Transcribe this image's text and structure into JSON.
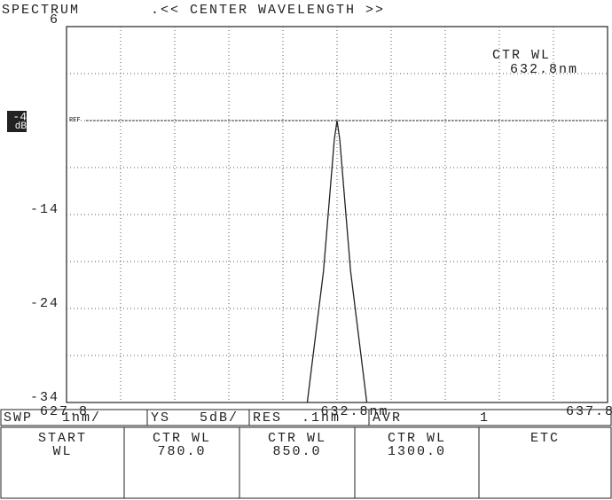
{
  "chart_data": {
    "type": "line",
    "title": "SPECTRUM",
    "subtitle": ".<< CENTER WAVELENGTH >>",
    "annotation": {
      "label": "CTR WL",
      "value": "632.8nm"
    },
    "ref_label": "REF",
    "ref_unit": "dB",
    "ref_level": -4,
    "x": [
      632.25,
      632.55,
      632.75,
      632.8,
      632.85,
      633.05,
      633.35
    ],
    "series": [
      {
        "name": "spectrum",
        "color": "#222",
        "values": [
          -34,
          -20,
          -6,
          -4,
          -6,
          -20,
          -34
        ]
      }
    ],
    "xlim": [
      627.8,
      637.8
    ],
    "xticks": [
      627.8,
      {
        "value": 632.8,
        "label": "632.8nm"
      },
      637.8
    ],
    "xgrid": [
      628.8,
      629.8,
      630.8,
      631.8,
      632.8,
      633.8,
      634.8,
      635.8,
      636.8
    ],
    "ylim": [
      -34,
      6
    ],
    "yticks": [
      6,
      -4,
      -14,
      -24,
      -34
    ],
    "ygrid": [
      1,
      -4,
      -9,
      -14,
      -19,
      -24,
      -29
    ],
    "grid": true
  },
  "status_bar": [
    "SWP   1nm/",
    "YS   5dB/",
    "RES  .1nm",
    "AVR        1"
  ],
  "softkeys": [
    [
      "START",
      "WL"
    ],
    [
      "CTR WL",
      "780.0"
    ],
    [
      "CTR WL",
      "850.0"
    ],
    [
      "CTR WL",
      "1300.0"
    ],
    [
      "ETC",
      ""
    ]
  ]
}
